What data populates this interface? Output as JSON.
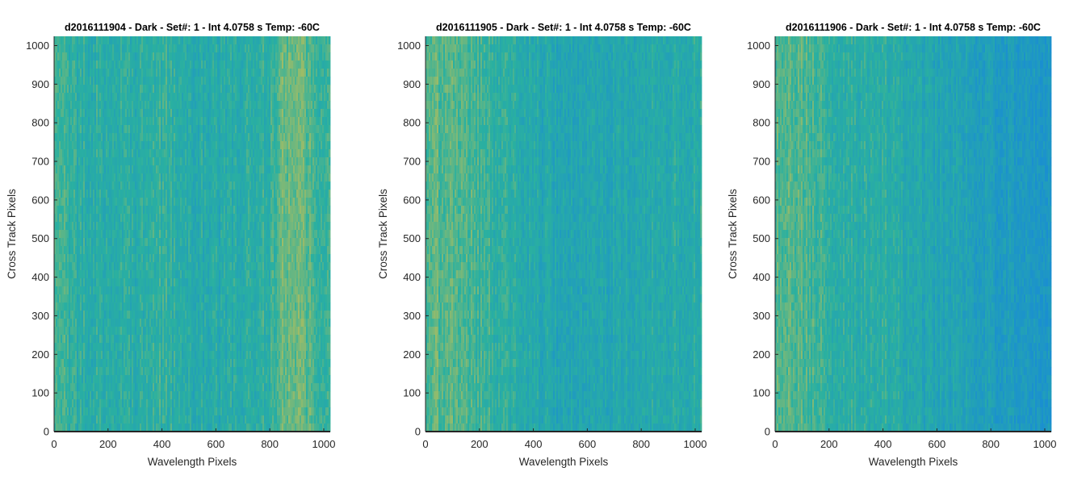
{
  "colors": {
    "low": "#1a8fd0",
    "mid": "#2ab0a0",
    "high": "#d8c24a",
    "axis": "#262626"
  },
  "chart_data": [
    {
      "type": "heatmap",
      "title": "d2016111904 - Dark - Set#: 1 - Int 4.0758 s Temp: -60C",
      "xlabel": "Wavelength Pixels",
      "ylabel": "Cross Track Pixels",
      "xlim": [
        0,
        1024
      ],
      "ylim": [
        0,
        1024
      ],
      "xticks": [
        0,
        200,
        400,
        600,
        800,
        1000
      ],
      "yticks": [
        0,
        100,
        200,
        300,
        400,
        500,
        600,
        700,
        800,
        900,
        1000
      ],
      "column_profile": {
        "x": [
          0,
          100,
          200,
          300,
          400,
          500,
          600,
          700,
          800,
          850,
          900,
          950,
          1024
        ],
        "level": [
          0.55,
          0.45,
          0.45,
          0.42,
          0.5,
          0.4,
          0.4,
          0.42,
          0.5,
          0.68,
          0.7,
          0.6,
          0.52
        ]
      }
    },
    {
      "type": "heatmap",
      "title": "d2016111905 - Dark - Set#: 1 - Int 4.0758 s Temp: -60C",
      "xlabel": "Wavelength Pixels",
      "ylabel": "Cross Track Pixels",
      "xlim": [
        0,
        1024
      ],
      "ylim": [
        0,
        1024
      ],
      "xticks": [
        0,
        200,
        400,
        600,
        800,
        1000
      ],
      "yticks": [
        0,
        100,
        200,
        300,
        400,
        500,
        600,
        700,
        800,
        900,
        1000
      ],
      "column_profile": {
        "x": [
          0,
          100,
          200,
          300,
          400,
          500,
          600,
          700,
          800,
          900,
          1024
        ],
        "level": [
          0.62,
          0.65,
          0.55,
          0.48,
          0.38,
          0.32,
          0.32,
          0.36,
          0.38,
          0.42,
          0.44
        ]
      }
    },
    {
      "type": "heatmap",
      "title": "d2016111906 - Dark - Set#: 1 - Int 4.0758 s Temp: -60C",
      "xlabel": "Wavelength Pixels",
      "ylabel": "Cross Track Pixels",
      "xlim": [
        0,
        1024
      ],
      "ylim": [
        0,
        1024
      ],
      "xticks": [
        0,
        200,
        400,
        600,
        800,
        1000
      ],
      "yticks": [
        0,
        100,
        200,
        300,
        400,
        500,
        600,
        700,
        800,
        900,
        1000
      ],
      "column_profile": {
        "x": [
          0,
          100,
          200,
          300,
          400,
          500,
          600,
          700,
          800,
          900,
          1024
        ],
        "level": [
          0.6,
          0.62,
          0.5,
          0.45,
          0.48,
          0.38,
          0.32,
          0.28,
          0.22,
          0.15,
          0.14
        ]
      }
    }
  ]
}
